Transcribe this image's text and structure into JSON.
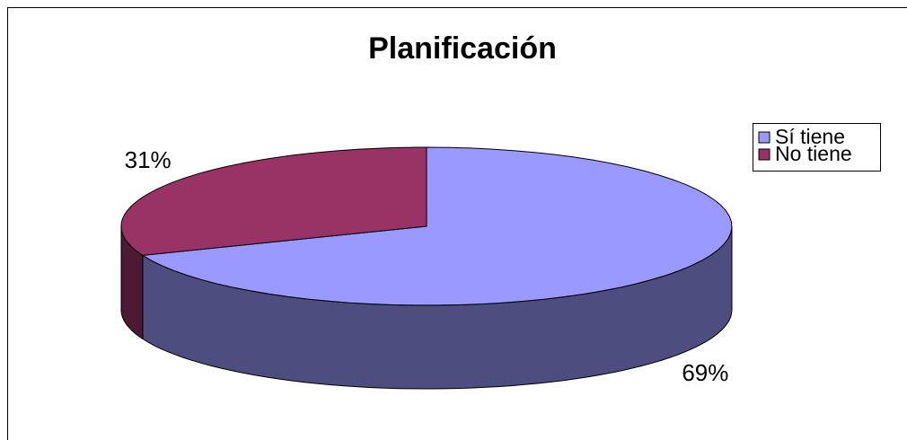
{
  "chart_data": {
    "type": "pie",
    "title": "Planificación",
    "categories": [
      "Sí tiene",
      "No tiene"
    ],
    "values": [
      69,
      31
    ],
    "value_labels": [
      "69%",
      "31%"
    ],
    "colors": [
      "#9999ff",
      "#993366"
    ],
    "legend": "right"
  }
}
